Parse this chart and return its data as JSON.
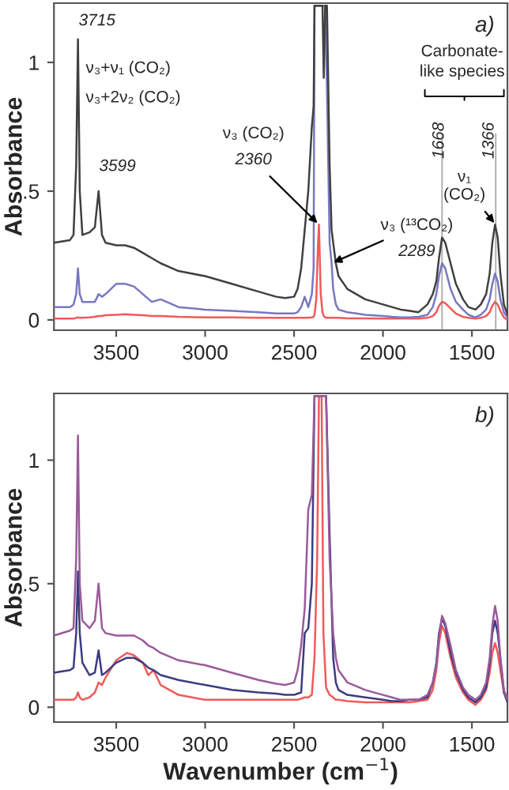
{
  "chart_data": [
    {
      "type": "line",
      "ylabel": "Absorbance",
      "xlim": [
        3850,
        1300
      ],
      "ylim": [
        -0.04,
        1.23
      ],
      "xticks": [
        3500,
        3000,
        2500,
        2000,
        1500
      ],
      "yticks": [
        0,
        {
          "value": 0.5,
          "label": ".5"
        },
        1
      ],
      "grid": false,
      "line_style": "solid",
      "marker": "none",
      "x": [
        3850,
        3760,
        3740,
        3725,
        3715,
        3705,
        3690,
        3650,
        3620,
        3599,
        3580,
        3560,
        3500,
        3450,
        3400,
        3350,
        3300,
        3250,
        3150,
        3000,
        2850,
        2700,
        2600,
        2550,
        2500,
        2480,
        2460,
        2440,
        2420,
        2400,
        2390,
        2385,
        2375,
        2365,
        2360,
        2350,
        2340,
        2333,
        2325,
        2315,
        2300,
        2289,
        2280,
        2265,
        2250,
        2200,
        2150,
        2100,
        2000,
        1950,
        1900,
        1850,
        1800,
        1750,
        1720,
        1700,
        1685,
        1668,
        1650,
        1620,
        1590,
        1550,
        1520,
        1480,
        1450,
        1420,
        1400,
        1385,
        1370,
        1355,
        1340,
        1320,
        1300
      ],
      "series": [
        {
          "color": "#404040",
          "values": [
            0.3,
            0.31,
            0.33,
            0.6,
            1.09,
            0.5,
            0.33,
            0.34,
            0.36,
            0.5,
            0.33,
            0.3,
            0.29,
            0.29,
            0.28,
            0.26,
            0.24,
            0.22,
            0.19,
            0.17,
            0.14,
            0.11,
            0.09,
            0.085,
            0.09,
            0.12,
            0.2,
            0.35,
            0.5,
            0.75,
            0.83,
            1.22,
            1.22,
            1.22,
            1.22,
            1.22,
            1.22,
            0.94,
            1.22,
            1.22,
            0.6,
            0.35,
            0.3,
            0.22,
            0.17,
            0.12,
            0.1,
            0.08,
            0.06,
            0.05,
            0.04,
            0.035,
            0.03,
            0.06,
            0.1,
            0.15,
            0.24,
            0.32,
            0.3,
            0.22,
            0.14,
            0.08,
            0.05,
            0.04,
            0.06,
            0.1,
            0.18,
            0.3,
            0.37,
            0.32,
            0.18,
            0.06,
            0.02
          ]
        },
        {
          "color": "#7878c0",
          "values": [
            0.05,
            0.05,
            0.06,
            0.1,
            0.2,
            0.1,
            0.07,
            0.07,
            0.07,
            0.1,
            0.09,
            0.1,
            0.14,
            0.14,
            0.13,
            0.1,
            0.07,
            0.08,
            0.05,
            0.04,
            0.035,
            0.03,
            0.025,
            0.025,
            0.025,
            0.03,
            0.05,
            0.09,
            0.05,
            0.1,
            0.2,
            1.22,
            1.22,
            1.22,
            1.22,
            1.22,
            1.22,
            1.22,
            1.22,
            0.9,
            0.3,
            0.22,
            0.12,
            0.06,
            0.04,
            0.03,
            0.025,
            0.02,
            0.015,
            0.012,
            0.01,
            0.01,
            0.012,
            0.02,
            0.05,
            0.1,
            0.17,
            0.22,
            0.2,
            0.12,
            0.07,
            0.04,
            0.02,
            0.01,
            0.02,
            0.04,
            0.08,
            0.14,
            0.18,
            0.15,
            0.08,
            0.03,
            0.01
          ]
        },
        {
          "color": "#f05a5a",
          "values": [
            0.005,
            0.005,
            0.005,
            0.008,
            0.01,
            0.008,
            0.008,
            0.01,
            0.012,
            0.015,
            0.015,
            0.018,
            0.02,
            0.022,
            0.02,
            0.018,
            0.015,
            0.015,
            0.012,
            0.01,
            0.01,
            0.008,
            0.008,
            0.008,
            0.008,
            0.008,
            0.008,
            0.008,
            0.008,
            0.01,
            0.012,
            0.02,
            0.08,
            0.3,
            0.37,
            0.1,
            0.03,
            0.015,
            0.01,
            0.008,
            0.008,
            0.008,
            0.008,
            0.008,
            0.008,
            0.006,
            0.006,
            0.006,
            0.005,
            0.005,
            0.005,
            0.005,
            0.005,
            0.008,
            0.015,
            0.03,
            0.055,
            0.07,
            0.065,
            0.045,
            0.025,
            0.012,
            0.008,
            0.005,
            0.008,
            0.015,
            0.03,
            0.055,
            0.07,
            0.06,
            0.035,
            0.01,
            0.0
          ]
        }
      ],
      "ref_lines": [
        {
          "axis": "x",
          "value": 1668,
          "color": "#b0b0b0"
        },
        {
          "axis": "x",
          "value": 1366,
          "color": "#b0b0b0"
        }
      ],
      "annotations": [
        {
          "text": "3715",
          "x": 3715,
          "y": 1.09
        },
        {
          "text": "3599",
          "x": 3599,
          "y": 0.5
        },
        "ν₃+ν₁ (CO₂)",
        "ν₃+2ν₂ (CO₂)",
        "ν₃ (CO₂)",
        {
          "text": "2360",
          "x": 2360,
          "y": 0.37
        },
        {
          "text": "ν₃ (¹³CO₂)",
          "x": 2289,
          "y": 0.22
        },
        {
          "text": "2289",
          "x": 2289,
          "y": 0.22
        },
        "Carbonate-\nlike species",
        "1668",
        "1366",
        {
          "text": "ν₁\n(CO₂)",
          "x": 1366,
          "y": 0.37
        },
        "a)"
      ]
    },
    {
      "type": "line",
      "xlabel": "Wavenumber (cm$^{−1}$)",
      "ylabel": "Absorbance",
      "xlim": [
        3850,
        1300
      ],
      "ylim": [
        -0.06,
        1.27
      ],
      "xticks": [
        3500,
        3000,
        2500,
        2000,
        1500
      ],
      "yticks": [
        0,
        {
          "value": 0.5,
          "label": ".5"
        },
        1
      ],
      "grid": false,
      "line_style": "solid",
      "marker": "none",
      "x": [
        3850,
        3760,
        3740,
        3725,
        3715,
        3705,
        3690,
        3650,
        3620,
        3599,
        3580,
        3560,
        3500,
        3440,
        3400,
        3350,
        3320,
        3290,
        3250,
        3150,
        3000,
        2850,
        2700,
        2600,
        2550,
        2500,
        2480,
        2460,
        2440,
        2420,
        2400,
        2385,
        2370,
        2360,
        2345,
        2335,
        2320,
        2300,
        2280,
        2265,
        2250,
        2200,
        2100,
        2000,
        1950,
        1900,
        1850,
        1800,
        1750,
        1720,
        1700,
        1685,
        1668,
        1650,
        1620,
        1590,
        1550,
        1520,
        1480,
        1450,
        1420,
        1400,
        1385,
        1370,
        1355,
        1340,
        1320,
        1300
      ],
      "series": [
        {
          "color": "#9a5a9a",
          "values": [
            0.29,
            0.31,
            0.32,
            0.6,
            1.1,
            0.5,
            0.35,
            0.32,
            0.35,
            0.5,
            0.32,
            0.3,
            0.29,
            0.29,
            0.29,
            0.27,
            0.25,
            0.24,
            0.22,
            0.19,
            0.17,
            0.14,
            0.11,
            0.095,
            0.09,
            0.1,
            0.15,
            0.25,
            0.4,
            0.8,
            0.86,
            1.26,
            1.26,
            1.26,
            1.26,
            1.26,
            1.26,
            0.6,
            0.3,
            0.2,
            0.15,
            0.1,
            0.07,
            0.05,
            0.04,
            0.03,
            0.03,
            0.03,
            0.05,
            0.1,
            0.17,
            0.28,
            0.37,
            0.34,
            0.25,
            0.15,
            0.08,
            0.05,
            0.03,
            0.05,
            0.1,
            0.2,
            0.33,
            0.41,
            0.35,
            0.2,
            0.07,
            0.03
          ]
        },
        {
          "color": "#3c3c80",
          "values": [
            0.14,
            0.15,
            0.16,
            0.3,
            0.55,
            0.3,
            0.18,
            0.13,
            0.14,
            0.23,
            0.13,
            0.14,
            0.18,
            0.2,
            0.2,
            0.18,
            0.16,
            0.15,
            0.13,
            0.11,
            0.09,
            0.07,
            0.06,
            0.055,
            0.05,
            0.05,
            0.055,
            0.06,
            0.3,
            0.32,
            0.5,
            1.26,
            1.26,
            1.26,
            1.26,
            1.26,
            1.26,
            0.7,
            0.2,
            0.1,
            0.07,
            0.05,
            0.04,
            0.03,
            0.025,
            0.025,
            0.03,
            0.03,
            0.04,
            0.1,
            0.18,
            0.3,
            0.36,
            0.33,
            0.22,
            0.14,
            0.07,
            0.04,
            0.02,
            0.04,
            0.08,
            0.18,
            0.3,
            0.35,
            0.3,
            0.2,
            0.06,
            0.02
          ]
        },
        {
          "color": "#f05a5a",
          "values": [
            0.03,
            0.03,
            0.03,
            0.04,
            0.06,
            0.04,
            0.03,
            0.04,
            0.06,
            0.1,
            0.09,
            0.12,
            0.19,
            0.22,
            0.21,
            0.18,
            0.13,
            0.15,
            0.09,
            0.05,
            0.03,
            0.03,
            0.03,
            0.03,
            0.03,
            0.03,
            0.03,
            0.035,
            0.04,
            0.04,
            0.05,
            0.2,
            0.6,
            1.26,
            1.26,
            0.3,
            0.08,
            0.05,
            0.04,
            0.03,
            0.03,
            0.025,
            0.02,
            0.02,
            0.02,
            0.02,
            0.02,
            0.025,
            0.03,
            0.07,
            0.15,
            0.26,
            0.33,
            0.3,
            0.2,
            0.12,
            0.06,
            0.03,
            0.01,
            0.03,
            0.07,
            0.14,
            0.22,
            0.26,
            0.22,
            0.15,
            0.06,
            0.04
          ]
        }
      ],
      "annotations": [
        "b)"
      ]
    }
  ]
}
